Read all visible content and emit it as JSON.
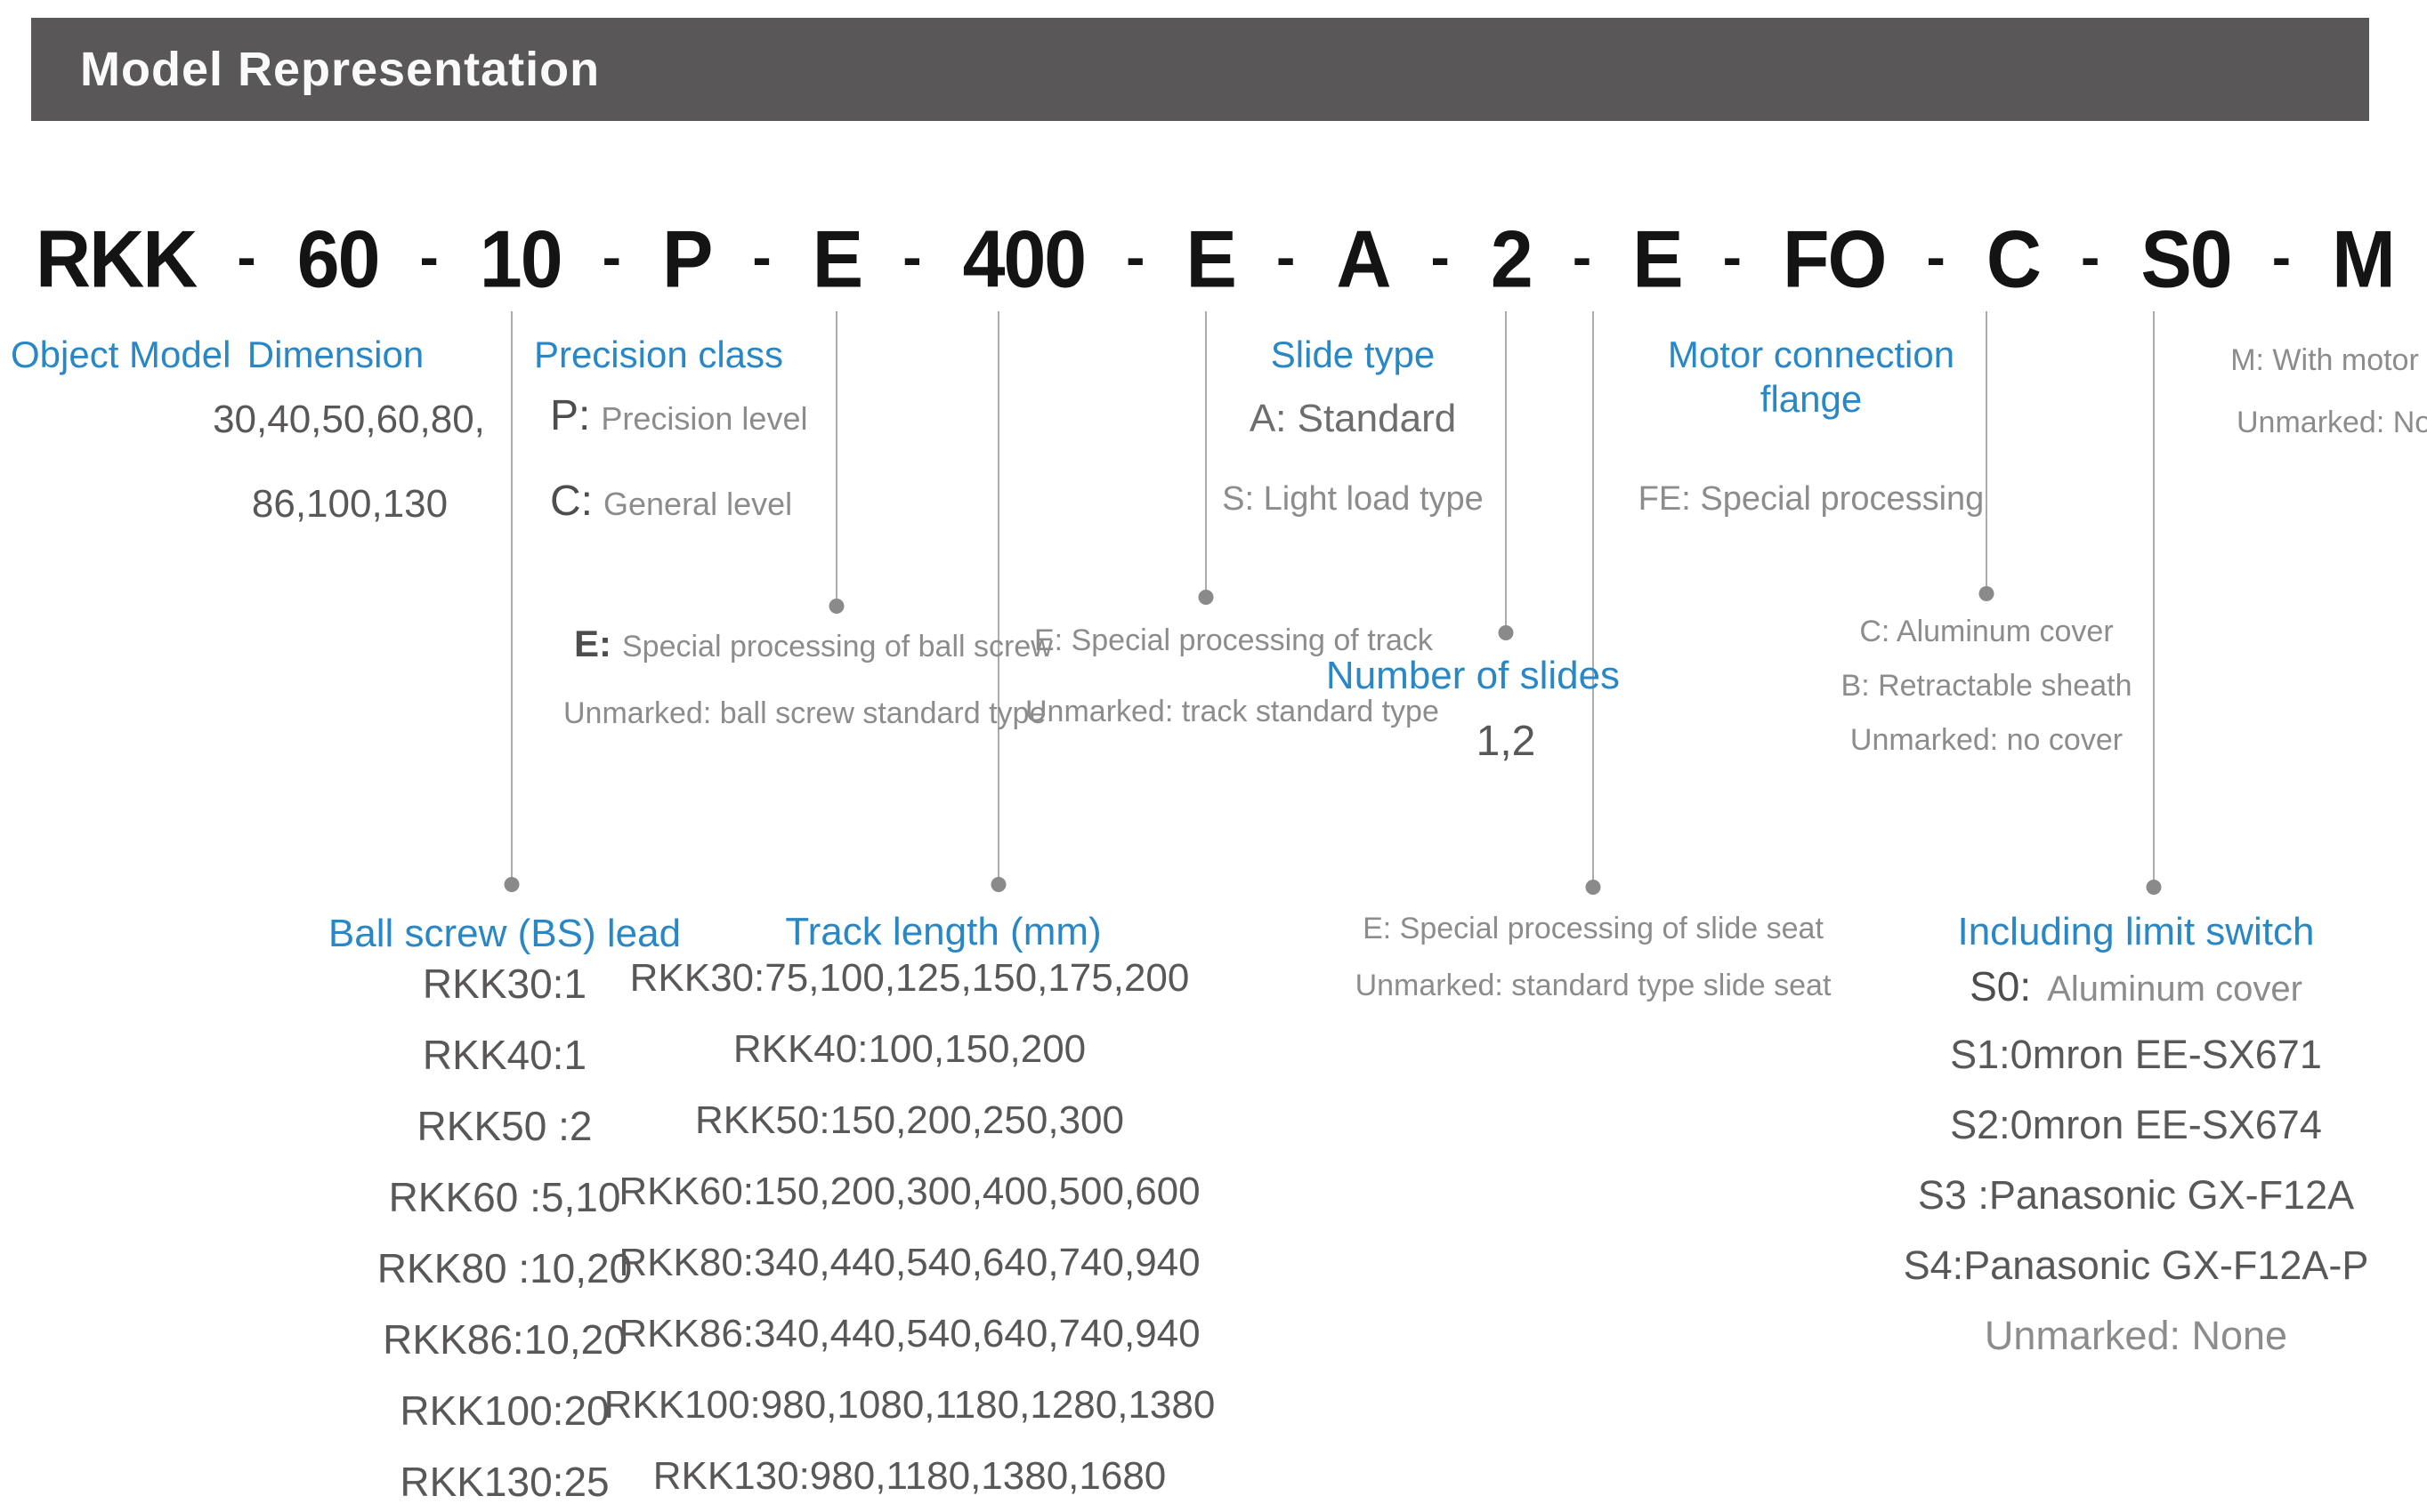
{
  "header": {
    "title": "Model Representation"
  },
  "model_code": {
    "value": "RKK-60-10-P-E-400-E-A-2-E-FO-C-S0-M",
    "separator": "-",
    "display_items": [
      "RKK",
      "-",
      "60",
      "-",
      "10",
      "-",
      "P",
      "-",
      "E",
      "-",
      "400",
      "-",
      "E",
      "-",
      "A",
      "-",
      "2",
      "-",
      "E",
      "-",
      "FO",
      "-",
      "C",
      "-",
      "S0",
      "-",
      "M"
    ]
  },
  "annotations": {
    "object_model": {
      "label": "Object Model"
    },
    "dimension": {
      "label": "Dimension",
      "values": [
        "30,40,50,60,80,",
        "86,100,130"
      ]
    },
    "precision_class": {
      "label": "Precision class",
      "items": [
        {
          "code": "P:",
          "desc": "Precision level"
        },
        {
          "code": "C:",
          "desc": "General level"
        }
      ]
    },
    "ball_screw_processing": {
      "lines": [
        {
          "code": "E:",
          "desc": "Special processing of ball screw"
        },
        {
          "code": "",
          "desc": "Unmarked: ball screw standard type"
        }
      ]
    },
    "track_processing": {
      "lines": [
        "E: Special processing of track",
        "Unmarked: track standard type"
      ]
    },
    "slide_type": {
      "label": "Slide type",
      "standard": "A: Standard",
      "light_load": "S: Light load type"
    },
    "number_of_slides": {
      "label": "Number of slides",
      "value": "1,2"
    },
    "motor_connection_flange": {
      "label_line1": "Motor connection",
      "label_line2": "flange",
      "special": "FE: Special processing"
    },
    "with_motor": {
      "motor": "M: With motor",
      "none": "Unmarked: None"
    },
    "cover": {
      "items": [
        "C: Aluminum cover",
        "B: Retractable sheath",
        "Unmarked: no cover"
      ]
    },
    "slide_seat": {
      "items": [
        "E: Special processing of slide seat",
        "Unmarked: standard type slide seat"
      ]
    },
    "ball_screw_lead": {
      "label": "Ball screw (BS) lead",
      "items": [
        "RKK30:1",
        "RKK40:1",
        "RKK50 :2",
        "RKK60 :5,10",
        "RKK80 :10,20",
        "RKK86:10,20",
        "RKK100:20",
        "RKK130:25"
      ]
    },
    "track_length": {
      "label": "Track length (mm)",
      "items": [
        "RKK30:75,100,125,150,175,200",
        "RKK40:100,150,200",
        "RKK50:150,200,250,300",
        "RKK60:150,200,300,400,500,600",
        "RKK80:340,440,540,640,740,940",
        "RKK86:340,440,540,640,740,940",
        "RKK100:980,1080,1180,1280,1380",
        "RKK130:980,1180,1380,1680"
      ]
    },
    "limit_switch": {
      "label": "Including limit switch",
      "s0": {
        "code": "S0:",
        "desc": "Aluminum cover"
      },
      "items": [
        "S1:0mron EE-SX671",
        "S2:0mron EE-SX674",
        "S3 :Panasonic GX-F12A",
        "S4:Panasonic GX-F12A-P",
        "Unmarked: None"
      ]
    }
  },
  "colors": {
    "header_bg": "#595757",
    "accent_blue": "#2a87c6",
    "text_dark": "#595757",
    "text_light": "#8c8c8c",
    "code_black": "#141414",
    "line_gray": "#ababab"
  }
}
